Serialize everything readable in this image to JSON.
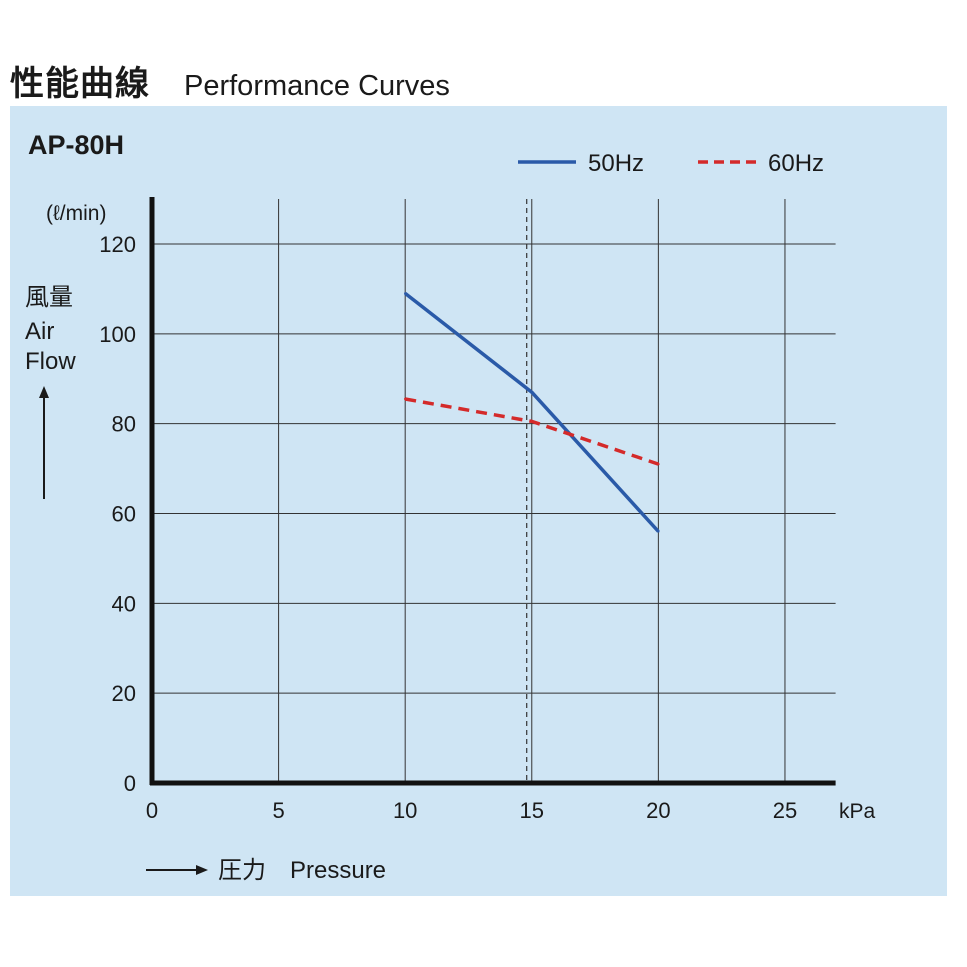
{
  "header": {
    "title_jp": "性能曲線",
    "title_en": "Performance Curves"
  },
  "chart_data": {
    "type": "line",
    "title": "AP-80H",
    "y_unit": "(ℓ/min)",
    "ylabel_lines": [
      "風量",
      "Air",
      "Flow"
    ],
    "xlabel": "圧力　Pressure",
    "x_unit": "kPa",
    "xlim": [
      0,
      27
    ],
    "ylim": [
      0,
      120
    ],
    "x_ticks": [
      0,
      5,
      10,
      15,
      20,
      25
    ],
    "y_ticks": [
      0,
      20,
      40,
      60,
      80,
      100,
      120
    ],
    "grid": true,
    "legend_position": "top-right",
    "reference_line_x": 14.8,
    "series": [
      {
        "name": "50Hz",
        "color": "#2a5aa8",
        "style": "solid",
        "points": [
          [
            10,
            109
          ],
          [
            15,
            87
          ],
          [
            20,
            56
          ]
        ]
      },
      {
        "name": "60Hz",
        "color": "#d42a2a",
        "style": "dashed",
        "points": [
          [
            10,
            85.5
          ],
          [
            15,
            80.5
          ],
          [
            20,
            71
          ]
        ]
      }
    ]
  }
}
